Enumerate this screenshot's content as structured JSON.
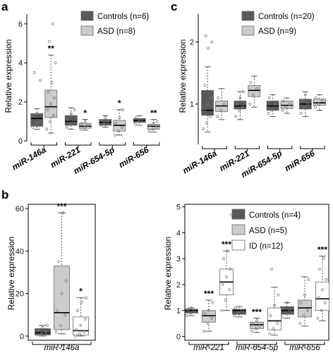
{
  "chart_data": [
    {
      "panel": "a",
      "type": "box",
      "ylabel": "Relative expression",
      "ylim": [
        0,
        6.5
      ],
      "yticks": [
        0,
        2,
        4,
        6
      ],
      "categories": [
        "miR-146a",
        "miR-221",
        "miR-654-5p",
        "miR-656"
      ],
      "legend": [
        {
          "name": "Controls (n=6)",
          "color": "#595959"
        },
        {
          "name": "ASD (n=8)",
          "color": "#cccccc"
        }
      ],
      "series": [
        {
          "name": "Controls (n=6)",
          "color": "#595959",
          "boxes": [
            [
              0.6,
              0.75,
              1.15,
              1.4,
              1.65
            ],
            [
              0.6,
              0.8,
              1.0,
              1.3,
              1.7
            ],
            [
              0.7,
              0.8,
              0.95,
              1.1,
              1.3
            ],
            [
              0.8,
              0.95,
              1.05,
              1.15,
              1.3
            ]
          ],
          "points": [
            [
              0.7,
              0.9,
              1.0,
              1.3,
              1.4,
              3.1,
              3.5
            ],
            [
              0.7,
              0.9,
              1.0,
              1.1,
              1.4,
              1.6
            ],
            [
              0.8,
              0.9,
              1.0,
              1.05,
              1.2
            ],
            [
              0.85,
              1.0,
              1.1,
              1.2
            ]
          ]
        },
        {
          "name": "ASD (n=8)",
          "color": "#cccccc",
          "boxes": [
            [
              0.4,
              1.2,
              1.75,
              2.6,
              4.4
            ],
            [
              0.55,
              0.65,
              0.75,
              0.9,
              1.1
            ],
            [
              0.3,
              0.5,
              0.8,
              1.05,
              1.6
            ],
            [
              0.45,
              0.6,
              0.75,
              0.85,
              1.1
            ]
          ],
          "points": [
            [
              0.6,
              1.0,
              1.3,
              1.6,
              1.9,
              2.2,
              2.5,
              3.0,
              4.0,
              5.1,
              6.0
            ],
            [
              0.6,
              0.7,
              0.8,
              0.9,
              1.0
            ],
            [
              0.3,
              0.5,
              0.7,
              0.9,
              1.2,
              1.6
            ],
            [
              0.5,
              0.6,
              0.7,
              0.8,
              0.9,
              1.0
            ]
          ]
        }
      ],
      "significance": [
        "**",
        "*",
        "*",
        "**"
      ]
    },
    {
      "panel": "c",
      "type": "box",
      "ylabel": "Relative expression",
      "ylim": [
        0.35,
        2.45
      ],
      "yticks": [
        1,
        2
      ],
      "categories": [
        "miR-146a",
        "miR-221",
        "miR-654-5p",
        "miR-656"
      ],
      "legend": [
        {
          "name": "Controls (n=20)",
          "color": "#595959"
        },
        {
          "name": "ASD (n=9)",
          "color": "#cccccc"
        }
      ],
      "series": [
        {
          "name": "Controls (n=20)",
          "color": "#595959",
          "boxes": [
            [
              0.55,
              0.82,
              0.9,
              1.22,
              1.6
            ],
            [
              0.75,
              0.92,
              0.97,
              1.05,
              1.2
            ],
            [
              0.8,
              0.9,
              0.97,
              1.05,
              1.15
            ],
            [
              0.8,
              0.92,
              1.0,
              1.08,
              1.2
            ]
          ],
          "points": [
            [
              0.6,
              0.7,
              0.8,
              0.9,
              1.0,
              1.1,
              1.3,
              1.9,
              2.0,
              2.1
            ],
            [
              0.8,
              0.9,
              0.95,
              1.0,
              1.1,
              1.2
            ],
            [
              0.85,
              0.9,
              1.0,
              1.1
            ],
            [
              0.85,
              0.95,
              1.0,
              1.05,
              1.15
            ]
          ]
        },
        {
          "name": "ASD (n=9)",
          "color": "#cccccc",
          "boxes": [
            [
              0.75,
              0.88,
              0.97,
              1.05,
              1.25
            ],
            [
              0.95,
              1.12,
              1.22,
              1.3,
              1.45
            ],
            [
              0.85,
              0.93,
              0.98,
              1.05,
              1.1
            ],
            [
              0.9,
              0.98,
              1.02,
              1.08,
              1.15
            ]
          ],
          "points": [
            [
              0.8,
              0.9,
              1.0,
              1.1
            ],
            [
              1.0,
              1.15,
              1.25,
              1.35
            ],
            [
              0.9,
              0.95,
              1.0,
              1.05
            ],
            [
              0.95,
              1.0,
              1.05,
              1.1
            ]
          ]
        }
      ],
      "significance": [
        "",
        "",
        "",
        ""
      ]
    },
    {
      "panel": "b",
      "type": "box",
      "ylabel": "Relative expression",
      "ylim": [
        -2,
        62
      ],
      "yticks": [
        0,
        20,
        40,
        60
      ],
      "categories": [
        "miR-146a"
      ],
      "series": [
        {
          "name": "Controls",
          "color": "#595959",
          "boxes": [
            [
              0,
              0.5,
              1.5,
              3.5,
              5
            ]
          ],
          "points": [
            [
              0.5,
              1,
              2,
              3,
              4,
              5
            ]
          ]
        },
        {
          "name": "ASD",
          "color": "#cccccc",
          "boxes": [
            [
              1,
              3,
              11,
              33,
              58
            ]
          ],
          "points": [
            [
              2,
              5,
              10,
              12,
              20,
              26,
              35,
              58
            ]
          ]
        },
        {
          "name": "ID",
          "color": "#ffffff",
          "boxes": [
            [
              0,
              0.5,
              2.5,
              9,
              18
            ]
          ],
          "points": [
            [
              0,
              1,
              2,
              3,
              5,
              8,
              12,
              16,
              18
            ]
          ]
        }
      ],
      "significance": [
        "",
        "***",
        "*"
      ]
    },
    {
      "panel": "b",
      "type": "box",
      "ylabel": "Relative expression",
      "ylim": [
        -0.15,
        5.1
      ],
      "yticks": [
        0,
        1,
        2,
        3,
        4,
        5
      ],
      "categories": [
        "miR-221",
        "miR-654-5p",
        "miR-656"
      ],
      "legend": [
        {
          "name": "Controls (n=4)",
          "color": "#595959"
        },
        {
          "name": "ASD (n=5)",
          "color": "#cccccc"
        },
        {
          "name": "ID (n=12)",
          "color": "#ffffff"
        }
      ],
      "series": [
        {
          "name": "Controls (n=4)",
          "color": "#595959",
          "boxes": [
            [
              0.8,
              0.9,
              1.0,
              1.05,
              1.1
            ],
            [
              0.75,
              0.85,
              1.0,
              1.05,
              1.15
            ],
            [
              0.7,
              0.85,
              1.0,
              1.15,
              1.3
            ]
          ],
          "points": [
            [
              0.8,
              0.9,
              1.0,
              1.05,
              1.1
            ],
            [
              0.8,
              0.9,
              1.0,
              1.1
            ],
            [
              0.75,
              0.9,
              1.0,
              1.1,
              1.3
            ]
          ]
        },
        {
          "name": "ASD (n=5)",
          "color": "#cccccc",
          "boxes": [
            [
              0.2,
              0.55,
              0.8,
              1.0,
              1.4
            ],
            [
              0.15,
              0.3,
              0.45,
              0.55,
              0.7
            ],
            [
              0.4,
              0.75,
              1.1,
              1.4,
              2.3
            ]
          ],
          "points": [
            [
              0.2,
              0.5,
              0.7,
              0.9,
              1.0,
              1.3
            ],
            [
              0.2,
              0.3,
              0.4,
              0.5,
              0.6
            ],
            [
              0.5,
              0.8,
              1.0,
              1.3,
              1.6,
              2.2
            ]
          ]
        },
        {
          "name": "ID (n=12)",
          "color": "#ffffff",
          "boxes": [
            [
              1.0,
              1.6,
              2.1,
              2.6,
              3.3
            ],
            [
              0.05,
              0.25,
              0.6,
              1.1,
              1.9
            ],
            [
              0.6,
              1.0,
              1.45,
              2.1,
              3.1
            ]
          ],
          "points": [
            [
              1.0,
              1.4,
              1.8,
              2.0,
              2.3,
              2.6,
              3.0,
              3.3,
              4.7
            ],
            [
              0.1,
              0.3,
              0.5,
              0.8,
              1.2,
              1.6,
              2.6
            ],
            [
              0.7,
              1.0,
              1.3,
              1.5,
              1.8,
              2.2,
              2.6,
              3.0
            ]
          ]
        }
      ],
      "significance": [
        "***",
        "***",
        "***"
      ]
    }
  ]
}
